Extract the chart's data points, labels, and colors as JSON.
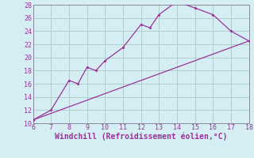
{
  "curve_x": [
    6,
    7,
    8,
    8.5,
    9,
    9.5,
    10,
    11,
    12,
    12.5,
    13,
    14,
    15,
    16,
    17,
    18
  ],
  "curve_y": [
    10.5,
    12,
    16.5,
    16,
    18.5,
    18,
    19.5,
    21.5,
    25,
    24.5,
    26.5,
    28.5,
    27.5,
    26.5,
    24,
    22.5
  ],
  "line_x": [
    6,
    18
  ],
  "line_y": [
    10.5,
    22.5
  ],
  "xlim": [
    6,
    18
  ],
  "ylim": [
    10,
    28
  ],
  "xticks": [
    6,
    7,
    8,
    9,
    10,
    11,
    12,
    13,
    14,
    15,
    16,
    17,
    18
  ],
  "yticks": [
    10,
    12,
    14,
    16,
    18,
    20,
    22,
    24,
    26,
    28
  ],
  "xlabel": "Windchill (Refroidissement éolien,°C)",
  "line_color": "#993399",
  "bg_color": "#d4eef4",
  "grid_color": "#b0cccc",
  "tick_fontsize": 6,
  "xlabel_fontsize": 7,
  "spine_color": "#888899"
}
